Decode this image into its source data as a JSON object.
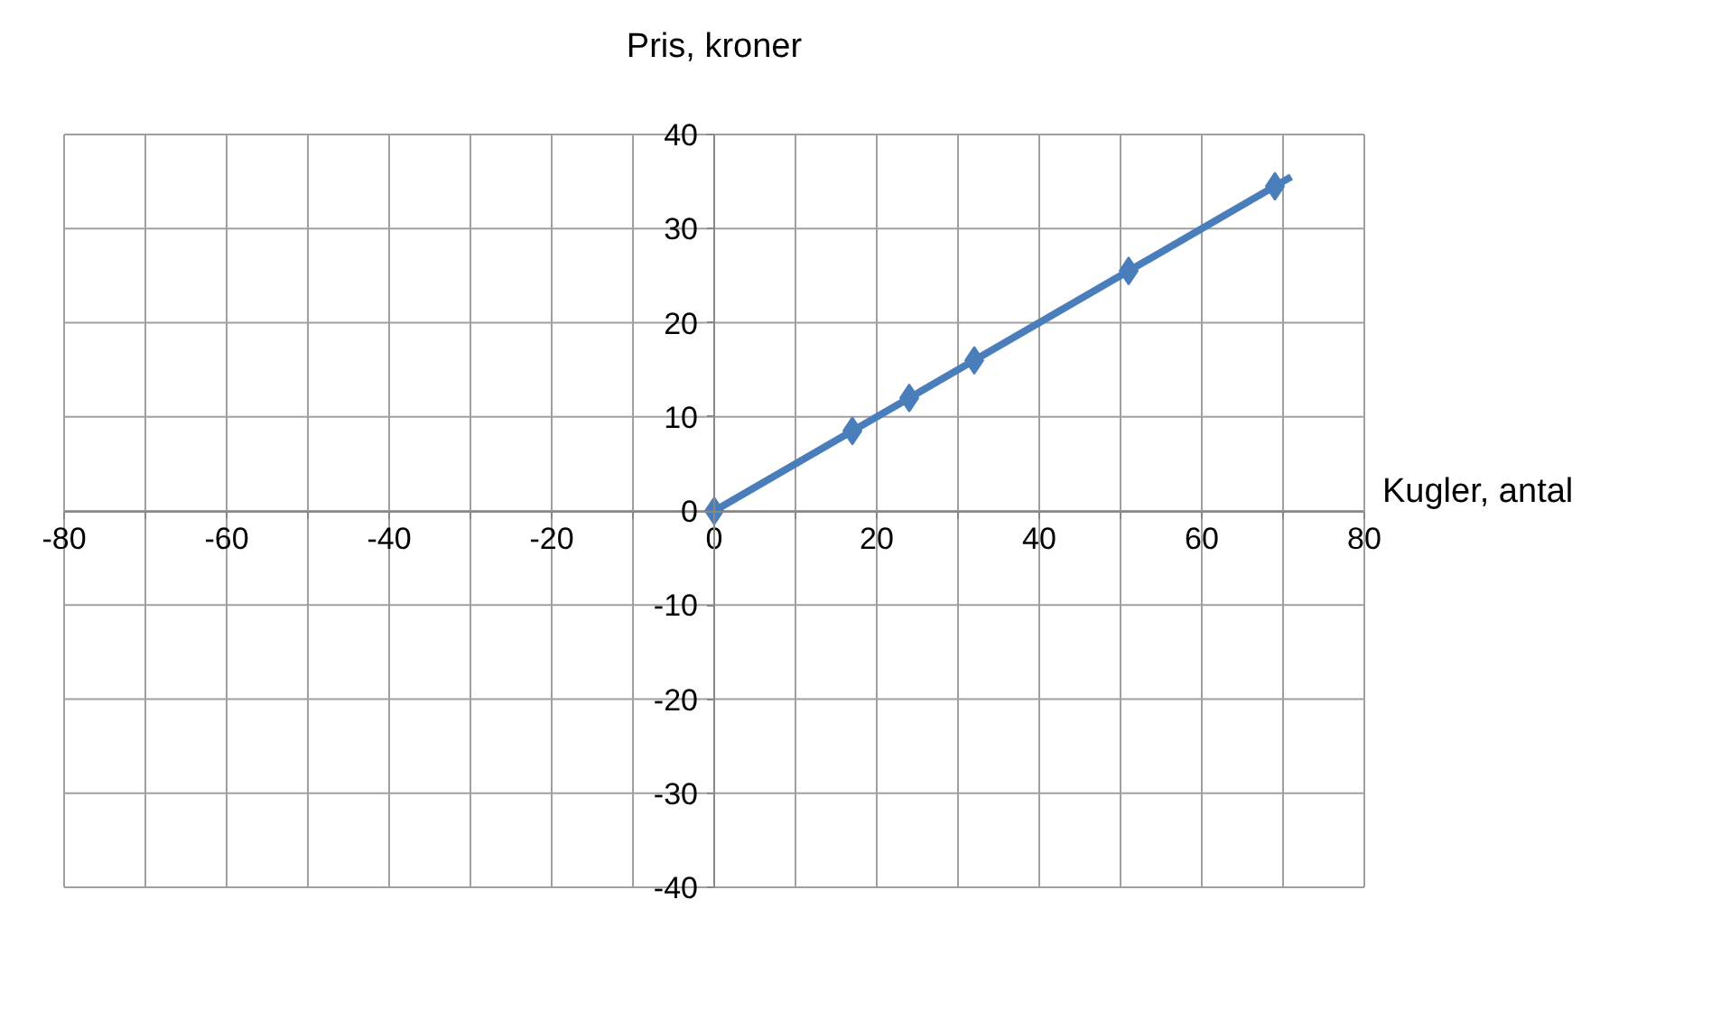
{
  "chart_data": {
    "type": "scatter",
    "xlabel": "Kugler, antal",
    "ylabel": "Pris, kroner",
    "xlim": [
      -80,
      80
    ],
    "ylim": [
      -40,
      40
    ],
    "xticks": [
      -80,
      {
        "value": -70,
        "label": null
      },
      -60,
      {
        "value": -50,
        "label": null
      },
      -40,
      {
        "value": -30,
        "label": null
      },
      -20,
      {
        "value": -10,
        "label": null
      },
      0,
      {
        "value": 10,
        "label": null
      },
      20,
      {
        "value": 30,
        "label": null
      },
      40,
      {
        "value": 50,
        "label": null
      },
      60,
      {
        "value": 70,
        "label": null
      },
      80
    ],
    "yticks": [
      -40,
      -30,
      -20,
      -10,
      0,
      10,
      20,
      30,
      40
    ],
    "grid": true,
    "series": [
      {
        "type": "line",
        "color": "#4a7ebb",
        "x": [
          0,
          71
        ],
        "values": [
          0,
          35.5
        ]
      },
      {
        "color": "#4a7ebb",
        "marker": "diamond",
        "x": [
          0,
          17,
          24,
          32,
          51,
          69
        ],
        "values": [
          0,
          8.5,
          12,
          16,
          25.5,
          34.5
        ]
      }
    ]
  }
}
